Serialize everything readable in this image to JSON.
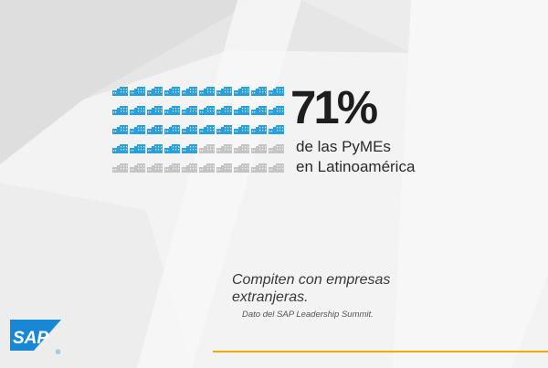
{
  "colors": {
    "filled": "#2a9fd8",
    "empty": "#c4c4c4",
    "accent": "#f0ab00",
    "logo": "#1888d4"
  },
  "pictogram": {
    "icon": "building-icon",
    "total": 50,
    "filled": 35
  },
  "stat": {
    "value": "71%",
    "line1": "de las PyMEs",
    "line2": "en Latinoamérica"
  },
  "quote": "Compiten con empresas extranjeras.",
  "source": "Dato del SAP Leadership Summit.",
  "logo": {
    "text": "SAP",
    "mark": "®"
  }
}
